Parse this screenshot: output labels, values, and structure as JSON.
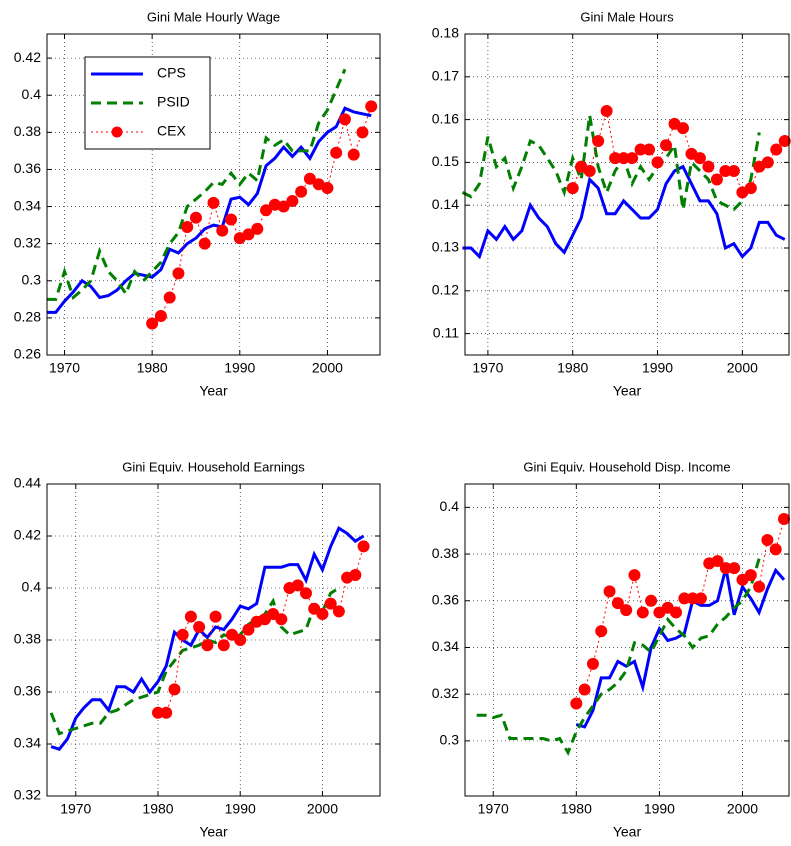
{
  "chart_data": [
    {
      "type": "line",
      "title": "Gini Male Hourly Wage",
      "xlabel": "Year",
      "x": [
        1967,
        1968,
        1969,
        1970,
        1971,
        1972,
        1973,
        1974,
        1975,
        1976,
        1977,
        1978,
        1979,
        1980,
        1981,
        1982,
        1983,
        1984,
        1985,
        1986,
        1987,
        1988,
        1989,
        1990,
        1991,
        1992,
        1993,
        1994,
        1995,
        1996,
        1997,
        1998,
        1999,
        2000,
        2001,
        2002,
        2003,
        2004,
        2005
      ],
      "xlim": [
        1968,
        2006
      ],
      "xticks": [
        1970,
        1980,
        1990,
        2000
      ],
      "ylim": [
        0.26,
        0.433
      ],
      "yticks": [
        0.26,
        0.28,
        0.3,
        0.32,
        0.34,
        0.36,
        0.38,
        0.4,
        0.42
      ],
      "grid": true,
      "legend": "upper left",
      "series": [
        {
          "name": "CPS",
          "color": "#0000ff",
          "style": "solid",
          "values": [
            null,
            0.283,
            0.283,
            0.289,
            0.294,
            0.3,
            0.297,
            0.291,
            0.292,
            0.295,
            0.3,
            0.304,
            0.303,
            0.302,
            0.306,
            0.317,
            0.315,
            0.32,
            0.323,
            0.328,
            0.33,
            0.329,
            0.344,
            0.345,
            0.341,
            0.347,
            0.362,
            0.366,
            0.372,
            0.367,
            0.372,
            0.366,
            0.375,
            0.38,
            0.383,
            0.393,
            0.391,
            0.39,
            0.389
          ]
        },
        {
          "name": "PSID",
          "color": "#007f00",
          "style": "dashed",
          "values": [
            null,
            0.29,
            0.29,
            0.305,
            0.291,
            0.295,
            0.3,
            0.316,
            0.305,
            0.3,
            0.293,
            0.305,
            0.3,
            0.305,
            0.31,
            0.32,
            0.326,
            0.34,
            0.344,
            0.348,
            0.353,
            0.352,
            0.358,
            0.352,
            0.358,
            0.354,
            0.377,
            0.373,
            0.376,
            0.37,
            0.37,
            0.37,
            0.385,
            0.392,
            0.403,
            0.414,
            null,
            null,
            null
          ]
        },
        {
          "name": "CEX",
          "color": "#ff0000",
          "style": "dotted-markers",
          "values": [
            null,
            null,
            null,
            null,
            null,
            null,
            null,
            null,
            null,
            null,
            null,
            null,
            null,
            0.277,
            0.281,
            0.291,
            0.304,
            0.329,
            0.334,
            0.32,
            0.342,
            0.327,
            0.333,
            0.323,
            0.325,
            0.328,
            0.338,
            0.341,
            0.34,
            0.343,
            0.348,
            0.355,
            0.352,
            0.35,
            0.369,
            0.387,
            0.368,
            0.38,
            0.394
          ]
        }
      ]
    },
    {
      "type": "line",
      "title": "Gini  Male Hours",
      "xlabel": "Year",
      "x": [
        1967,
        1968,
        1969,
        1970,
        1971,
        1972,
        1973,
        1974,
        1975,
        1976,
        1977,
        1978,
        1979,
        1980,
        1981,
        1982,
        1983,
        1984,
        1985,
        1986,
        1987,
        1988,
        1989,
        1990,
        1991,
        1992,
        1993,
        1994,
        1995,
        1996,
        1997,
        1998,
        1999,
        2000,
        2001,
        2002,
        2003,
        2004,
        2005
      ],
      "xlim": [
        1967.3,
        2005.5
      ],
      "xticks": [
        1970,
        1980,
        1990,
        2000
      ],
      "ylim": [
        0.105,
        0.18
      ],
      "yticks": [
        0.11,
        0.12,
        0.13,
        0.14,
        0.15,
        0.16,
        0.17,
        0.18
      ],
      "grid": true,
      "series": [
        {
          "color": "#0000ff",
          "style": "solid",
          "values": [
            0.13,
            0.13,
            0.128,
            0.134,
            0.132,
            0.135,
            0.132,
            0.134,
            0.14,
            0.137,
            0.135,
            0.131,
            0.129,
            0.133,
            0.137,
            0.146,
            0.144,
            0.138,
            0.138,
            0.141,
            0.139,
            0.137,
            0.137,
            0.139,
            0.145,
            0.148,
            0.149,
            0.145,
            0.141,
            0.141,
            0.138,
            0.13,
            0.131,
            0.128,
            0.13,
            0.136,
            0.136,
            0.133,
            0.132
          ]
        },
        {
          "color": "#007f00",
          "style": "dashed",
          "values": [
            0.143,
            0.142,
            0.145,
            0.156,
            0.149,
            0.151,
            0.144,
            0.149,
            0.155,
            0.154,
            0.151,
            0.148,
            0.143,
            0.151,
            0.146,
            0.161,
            0.149,
            0.143,
            0.148,
            0.151,
            0.145,
            0.149,
            0.146,
            0.149,
            0.151,
            0.154,
            0.139,
            0.15,
            0.148,
            0.146,
            0.141,
            0.14,
            0.139,
            0.141,
            0.146,
            0.157,
            null,
            null,
            null
          ]
        },
        {
          "color": "#ff0000",
          "style": "dotted-markers",
          "values": [
            null,
            null,
            null,
            null,
            null,
            null,
            null,
            null,
            null,
            null,
            null,
            null,
            null,
            0.144,
            0.149,
            0.148,
            0.155,
            0.162,
            0.151,
            0.151,
            0.151,
            0.153,
            0.153,
            0.15,
            0.154,
            0.159,
            0.158,
            0.152,
            0.151,
            0.149,
            0.146,
            0.148,
            0.148,
            0.143,
            0.144,
            0.149,
            0.15,
            0.153,
            0.155
          ]
        }
      ]
    },
    {
      "type": "line",
      "title": "Gini  Equiv. Household Earnings",
      "xlabel": "Year",
      "x": [
        1967,
        1968,
        1969,
        1970,
        1971,
        1972,
        1973,
        1974,
        1975,
        1976,
        1977,
        1978,
        1979,
        1980,
        1981,
        1982,
        1983,
        1984,
        1985,
        1986,
        1987,
        1988,
        1989,
        1990,
        1991,
        1992,
        1993,
        1994,
        1995,
        1996,
        1997,
        1998,
        1999,
        2000,
        2001,
        2002,
        2003,
        2004,
        2005
      ],
      "xlim": [
        1966.5,
        2007
      ],
      "xticks": [
        1970,
        1980,
        1990,
        2000
      ],
      "ylim": [
        0.32,
        0.44
      ],
      "yticks": [
        0.32,
        0.34,
        0.36,
        0.38,
        0.4,
        0.42,
        0.44
      ],
      "grid": true,
      "series": [
        {
          "color": "#0000ff",
          "style": "solid",
          "values": [
            0.339,
            0.338,
            0.342,
            0.35,
            0.354,
            0.357,
            0.357,
            0.353,
            0.362,
            0.362,
            0.36,
            0.365,
            0.36,
            0.364,
            0.37,
            0.383,
            0.38,
            0.378,
            0.384,
            0.381,
            0.385,
            0.384,
            0.388,
            0.393,
            0.392,
            0.394,
            0.408,
            0.408,
            0.408,
            0.409,
            0.409,
            0.403,
            0.413,
            0.407,
            0.416,
            0.423,
            0.421,
            0.418,
            0.42
          ]
        },
        {
          "color": "#007f00",
          "style": "dashed",
          "values": [
            0.352,
            0.344,
            0.345,
            0.346,
            0.347,
            0.348,
            0.348,
            0.352,
            0.353,
            0.355,
            0.357,
            0.358,
            0.359,
            0.36,
            0.368,
            0.372,
            0.376,
            0.377,
            0.378,
            0.38,
            0.379,
            0.382,
            0.381,
            0.382,
            0.386,
            0.388,
            0.39,
            0.395,
            0.385,
            0.382,
            0.383,
            0.384,
            0.393,
            0.391,
            0.398,
            0.4,
            null,
            null,
            null
          ]
        },
        {
          "color": "#ff0000",
          "style": "dotted-markers",
          "values": [
            null,
            null,
            null,
            null,
            null,
            null,
            null,
            null,
            null,
            null,
            null,
            null,
            null,
            0.352,
            0.352,
            0.361,
            0.382,
            0.389,
            0.385,
            0.378,
            0.389,
            0.378,
            0.382,
            0.38,
            0.384,
            0.387,
            0.388,
            0.39,
            0.388,
            0.4,
            0.401,
            0.398,
            0.392,
            0.39,
            0.394,
            0.391,
            0.404,
            0.405,
            0.416
          ]
        }
      ]
    },
    {
      "type": "line",
      "title": "Gini  Equiv. Household Disp. Income",
      "xlabel": "Year",
      "x": [
        1967,
        1968,
        1969,
        1970,
        1971,
        1972,
        1973,
        1974,
        1975,
        1976,
        1977,
        1978,
        1979,
        1980,
        1981,
        1982,
        1983,
        1984,
        1985,
        1986,
        1987,
        1988,
        1989,
        1990,
        1991,
        1992,
        1993,
        1994,
        1995,
        1996,
        1997,
        1998,
        1999,
        2000,
        2001,
        2002,
        2003,
        2004,
        2005
      ],
      "xlim": [
        1966.6,
        2005.6
      ],
      "xticks": [
        1970,
        1980,
        1990,
        2000
      ],
      "ylim": [
        0.2764,
        0.41
      ],
      "yticks": [
        0.3,
        0.32,
        0.34,
        0.36,
        0.38,
        0.4
      ],
      "grid": true,
      "series": [
        {
          "color": "#0000ff",
          "style": "solid",
          "values": [
            null,
            null,
            null,
            null,
            null,
            null,
            null,
            null,
            null,
            null,
            null,
            null,
            null,
            0.307,
            0.306,
            0.313,
            0.327,
            0.327,
            0.334,
            0.332,
            0.334,
            0.323,
            0.34,
            0.348,
            0.343,
            0.344,
            0.346,
            0.36,
            0.358,
            0.358,
            0.36,
            0.374,
            0.354,
            0.366,
            0.361,
            0.355,
            0.365,
            0.373,
            0.369
          ]
        },
        {
          "color": "#007f00",
          "style": "dashed",
          "values": [
            null,
            0.311,
            0.311,
            0.31,
            0.311,
            0.301,
            0.301,
            0.301,
            0.301,
            0.301,
            0.3,
            0.301,
            0.295,
            0.304,
            0.31,
            0.315,
            0.32,
            0.322,
            0.325,
            0.33,
            0.342,
            0.341,
            0.338,
            0.345,
            0.352,
            0.348,
            0.345,
            0.34,
            0.344,
            0.345,
            0.35,
            0.353,
            0.357,
            0.36,
            0.366,
            0.378,
            null,
            null,
            null
          ]
        },
        {
          "color": "#ff0000",
          "style": "dotted-markers",
          "values": [
            null,
            null,
            null,
            null,
            null,
            null,
            null,
            null,
            null,
            null,
            null,
            null,
            null,
            0.316,
            0.322,
            0.333,
            0.347,
            0.364,
            0.359,
            0.356,
            0.371,
            0.355,
            0.36,
            0.355,
            0.357,
            0.355,
            0.361,
            0.361,
            0.361,
            0.376,
            0.377,
            0.374,
            0.374,
            0.369,
            0.371,
            0.366,
            0.386,
            0.382,
            0.395
          ]
        }
      ]
    }
  ]
}
